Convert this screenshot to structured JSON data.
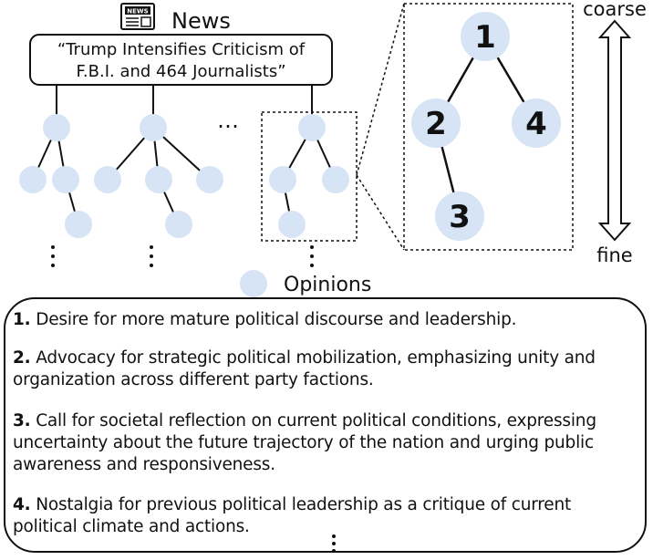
{
  "news": {
    "label": "News",
    "icon": "newspaper-icon",
    "icon_text": "NEWS",
    "headline_line1": "“Trump Intensifies Criticism of",
    "headline_line2": "F.B.I. and 464 Journalists”"
  },
  "ellipsis": "…",
  "legend": {
    "label": "Opinions"
  },
  "zoom_tree": {
    "nodes": [
      "1",
      "2",
      "3",
      "4"
    ]
  },
  "scale": {
    "top": "coarse",
    "bottom": "fine"
  },
  "opinions": [
    {
      "num": "1.",
      "text": "Desire for more mature political discourse and leadership."
    },
    {
      "num": "2.",
      "line1": "Advocacy for strategic political mobilization, emphasizing unity and",
      "line2": "organization across different party factions."
    },
    {
      "num": "3.",
      "line1": "Call for societal reflection on current political conditions, expressing",
      "line2": "uncertainty about the future trajectory of the nation and urging public",
      "line3": "awareness and responsiveness."
    },
    {
      "num": "4.",
      "line1": "Nostalgia for previous political leadership as a critique of current",
      "line2": "political climate and actions."
    }
  ],
  "colors": {
    "node": "#d6e4f5",
    "line": "#111111"
  }
}
